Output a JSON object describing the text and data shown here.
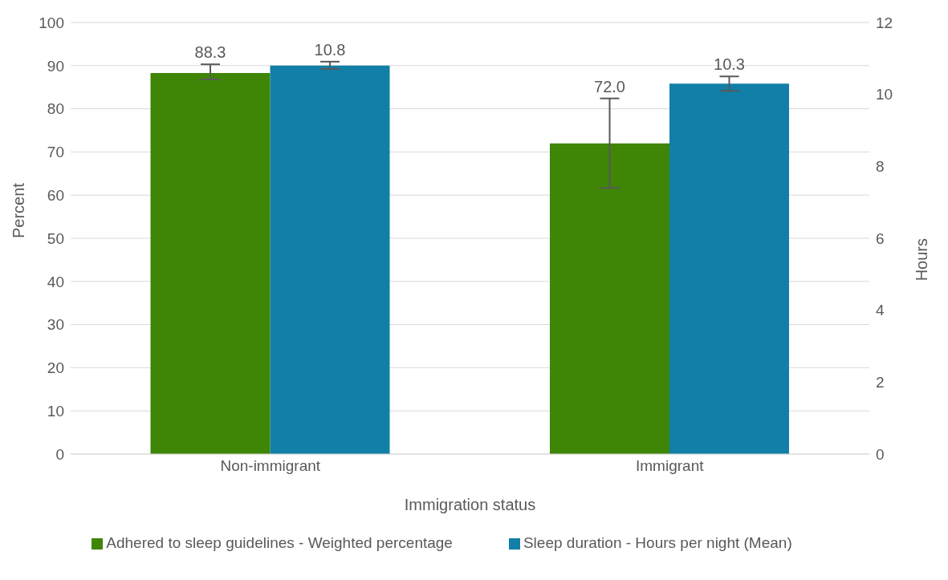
{
  "chart_data": {
    "type": "bar",
    "xlabel": "Immigration status",
    "ylabel": "Percent",
    "y2label": "Hours",
    "categories": [
      "Non-immigrant",
      "Immigrant"
    ],
    "series": [
      {
        "name": "Adhered to sleep guidelines - Weighted percentage",
        "color": "#3f8506",
        "values": [
          88.3,
          72.0
        ],
        "value_labels": [
          "88.3",
          "72.0"
        ],
        "errors": [
          [
            86.8,
            90.3
          ],
          [
            61.7,
            82.4
          ]
        ]
      },
      {
        "name": "Sleep duration - Hours per night (Mean)",
        "color": "#127fa8",
        "values": [
          10.8,
          10.3
        ],
        "value_labels": [
          "10.8",
          "10.3"
        ],
        "errors": [
          [
            10.71,
            10.91
          ],
          [
            10.1,
            10.5
          ]
        ],
        "axis": "y2"
      }
    ],
    "ylim": [
      0,
      100
    ],
    "yticks": [
      0,
      10,
      20,
      30,
      40,
      50,
      60,
      70,
      80,
      90,
      100
    ],
    "y2lim": [
      0,
      12
    ],
    "y2ticks": [
      0,
      2,
      4,
      6,
      8,
      10,
      12
    ],
    "grid": "y",
    "legend": "bottom"
  }
}
